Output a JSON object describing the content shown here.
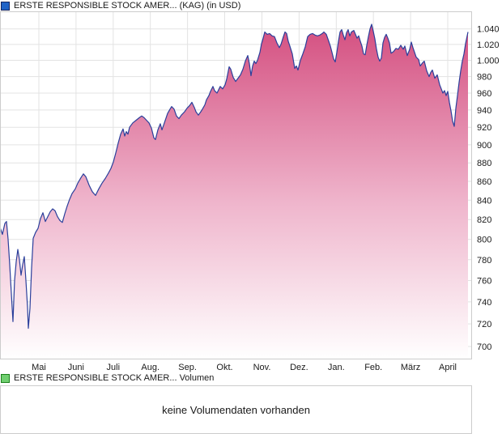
{
  "price_panel": {
    "legend": {
      "label": "ERSTE RESPONSIBLE STOCK AMER... (KAG) (in USD)",
      "swatch_fill": "#2063c6",
      "swatch_border": "#16255f"
    },
    "colors": {
      "line": "#2b3f9b",
      "area_top": "#d2477a",
      "area_mid": "#efb5cc",
      "area_bottom": "#ffffff",
      "grid": "#e3e3e3",
      "border": "#cccccc",
      "text": "#1a1a1a"
    }
  },
  "volume_panel": {
    "legend": {
      "label": "ERSTE RESPONSIBLE STOCK AMER... Volumen",
      "swatch_fill": "#70cf70",
      "swatch_border": "#1b801b"
    },
    "message": "keine Volumendaten vorhanden"
  },
  "chart_data": {
    "type": "area",
    "title": "ERSTE RESPONSIBLE STOCK AMER... (KAG) (in USD)",
    "unit": "USD",
    "grid": true,
    "legend_position": "top-left",
    "y_axis": {
      "side": "right",
      "scale": "log",
      "ylim": [
        700,
        1040
      ],
      "ticks": [
        "1.040",
        "1.020",
        "1.000",
        "980",
        "960",
        "940",
        "920",
        "900",
        "880",
        "860",
        "840",
        "820",
        "800",
        "780",
        "760",
        "740",
        "720",
        "700"
      ],
      "tick_values": [
        1040,
        1020,
        1000,
        980,
        960,
        940,
        920,
        900,
        880,
        860,
        840,
        820,
        800,
        780,
        760,
        740,
        720,
        700
      ]
    },
    "x_axis": {
      "months": [
        "Mai",
        "Juni",
        "Juli",
        "Aug.",
        "Sep.",
        "Okt.",
        "Nov.",
        "Dez.",
        "Jan.",
        "Feb.",
        "März",
        "April"
      ]
    },
    "series": [
      {
        "name": "ERSTE RESPONSIBLE STOCK AMER... (KAG)",
        "points": [
          [
            0,
            812
          ],
          [
            3,
            805
          ],
          [
            6,
            816
          ],
          [
            8,
            818
          ],
          [
            10,
            800
          ],
          [
            12,
            775
          ],
          [
            14,
            748
          ],
          [
            16,
            722
          ],
          [
            18,
            760
          ],
          [
            20,
            778
          ],
          [
            22,
            790
          ],
          [
            24,
            780
          ],
          [
            26,
            765
          ],
          [
            28,
            775
          ],
          [
            30,
            783
          ],
          [
            32,
            760
          ],
          [
            34,
            735
          ],
          [
            35,
            716
          ],
          [
            37,
            734
          ],
          [
            39,
            772
          ],
          [
            41,
            801
          ],
          [
            44,
            807
          ],
          [
            47,
            811
          ],
          [
            50,
            821
          ],
          [
            53,
            827
          ],
          [
            56,
            818
          ],
          [
            59,
            823
          ],
          [
            62,
            828
          ],
          [
            65,
            831
          ],
          [
            68,
            829
          ],
          [
            71,
            823
          ],
          [
            74,
            819
          ],
          [
            77,
            817
          ],
          [
            80,
            826
          ],
          [
            83,
            834
          ],
          [
            86,
            841
          ],
          [
            89,
            847
          ],
          [
            93,
            852
          ],
          [
            96,
            858
          ],
          [
            100,
            864
          ],
          [
            103,
            868
          ],
          [
            106,
            865
          ],
          [
            110,
            856
          ],
          [
            114,
            849
          ],
          [
            118,
            845
          ],
          [
            122,
            852
          ],
          [
            126,
            858
          ],
          [
            130,
            863
          ],
          [
            134,
            869
          ],
          [
            137,
            874
          ],
          [
            140,
            881
          ],
          [
            143,
            891
          ],
          [
            146,
            902
          ],
          [
            149,
            912
          ],
          [
            152,
            918
          ],
          [
            154,
            910
          ],
          [
            156,
            915
          ],
          [
            158,
            912
          ],
          [
            160,
            920
          ],
          [
            164,
            925
          ],
          [
            168,
            928
          ],
          [
            172,
            931
          ],
          [
            175,
            933
          ],
          [
            178,
            931
          ],
          [
            181,
            928
          ],
          [
            184,
            925
          ],
          [
            187,
            919
          ],
          [
            190,
            908
          ],
          [
            192,
            906
          ],
          [
            195,
            917
          ],
          [
            198,
            924
          ],
          [
            200,
            917
          ],
          [
            203,
            925
          ],
          [
            207,
            936
          ],
          [
            210,
            941
          ],
          [
            212,
            944
          ],
          [
            215,
            941
          ],
          [
            218,
            933
          ],
          [
            221,
            930
          ],
          [
            224,
            934
          ],
          [
            228,
            938
          ],
          [
            231,
            942
          ],
          [
            234,
            945
          ],
          [
            237,
            949
          ],
          [
            240,
            943
          ],
          [
            242,
            938
          ],
          [
            245,
            934
          ],
          [
            248,
            938
          ],
          [
            250,
            941
          ],
          [
            253,
            946
          ],
          [
            255,
            952
          ],
          [
            258,
            957
          ],
          [
            260,
            962
          ],
          [
            263,
            968
          ],
          [
            265,
            963
          ],
          [
            268,
            960
          ],
          [
            270,
            964
          ],
          [
            272,
            968
          ],
          [
            275,
            965
          ],
          [
            278,
            970
          ],
          [
            280,
            977
          ],
          [
            283,
            992
          ],
          [
            285,
            989
          ],
          [
            288,
            979
          ],
          [
            291,
            974
          ],
          [
            294,
            978
          ],
          [
            297,
            982
          ],
          [
            300,
            989
          ],
          [
            303,
            999
          ],
          [
            306,
            1006
          ],
          [
            308,
            996
          ],
          [
            310,
            981
          ],
          [
            312,
            993
          ],
          [
            314,
            999
          ],
          [
            316,
            996
          ],
          [
            318,
            1000
          ],
          [
            321,
            1010
          ],
          [
            323,
            1021
          ],
          [
            325,
            1028
          ],
          [
            327,
            1036
          ],
          [
            330,
            1033
          ],
          [
            333,
            1034
          ],
          [
            336,
            1031
          ],
          [
            339,
            1030
          ],
          [
            342,
            1022
          ],
          [
            345,
            1016
          ],
          [
            347,
            1020
          ],
          [
            350,
            1030
          ],
          [
            352,
            1036
          ],
          [
            354,
            1034
          ],
          [
            356,
            1024
          ],
          [
            358,
            1018
          ],
          [
            361,
            1008
          ],
          [
            364,
            990
          ],
          [
            366,
            993
          ],
          [
            368,
            988
          ],
          [
            371,
            1000
          ],
          [
            374,
            1008
          ],
          [
            377,
            1017
          ],
          [
            380,
            1030
          ],
          [
            383,
            1033
          ],
          [
            386,
            1034
          ],
          [
            389,
            1032
          ],
          [
            392,
            1031
          ],
          [
            395,
            1032
          ],
          [
            398,
            1034
          ],
          [
            400,
            1036
          ],
          [
            403,
            1033
          ],
          [
            406,
            1024
          ],
          [
            408,
            1018
          ],
          [
            410,
            1010
          ],
          [
            412,
            1002
          ],
          [
            414,
            998
          ],
          [
            416,
            1010
          ],
          [
            418,
            1024
          ],
          [
            420,
            1036
          ],
          [
            422,
            1039
          ],
          [
            424,
            1032
          ],
          [
            426,
            1026
          ],
          [
            428,
            1035
          ],
          [
            430,
            1039
          ],
          [
            432,
            1031
          ],
          [
            434,
            1036
          ],
          [
            437,
            1038
          ],
          [
            439,
            1033
          ],
          [
            441,
            1028
          ],
          [
            443,
            1031
          ],
          [
            445,
            1024
          ],
          [
            447,
            1018
          ],
          [
            449,
            1008
          ],
          [
            451,
            1007
          ],
          [
            453,
            1019
          ],
          [
            455,
            1030
          ],
          [
            457,
            1040
          ],
          [
            459,
            1046
          ],
          [
            461,
            1037
          ],
          [
            463,
            1027
          ],
          [
            465,
            1014
          ],
          [
            467,
            1004
          ],
          [
            469,
            999
          ],
          [
            471,
            1003
          ],
          [
            473,
            1022
          ],
          [
            475,
            1029
          ],
          [
            477,
            1033
          ],
          [
            479,
            1028
          ],
          [
            481,
            1022
          ],
          [
            483,
            1009
          ],
          [
            486,
            1011
          ],
          [
            489,
            1015
          ],
          [
            492,
            1014
          ],
          [
            495,
            1019
          ],
          [
            498,
            1014
          ],
          [
            500,
            1018
          ],
          [
            503,
            1006
          ],
          [
            506,
            1014
          ],
          [
            508,
            1023
          ],
          [
            510,
            1016
          ],
          [
            512,
            1010
          ],
          [
            514,
            1004
          ],
          [
            517,
            1001
          ],
          [
            519,
            993
          ],
          [
            522,
            997
          ],
          [
            524,
            999
          ],
          [
            527,
            987
          ],
          [
            530,
            980
          ],
          [
            532,
            985
          ],
          [
            534,
            988
          ],
          [
            537,
            978
          ],
          [
            540,
            982
          ],
          [
            543,
            970
          ],
          [
            545,
            965
          ],
          [
            547,
            960
          ],
          [
            549,
            963
          ],
          [
            551,
            957
          ],
          [
            553,
            962
          ],
          [
            555,
            949
          ],
          [
            557,
            939
          ],
          [
            559,
            927
          ],
          [
            561,
            921
          ],
          [
            563,
            942
          ],
          [
            565,
            957
          ],
          [
            567,
            973
          ],
          [
            569,
            987
          ],
          [
            571,
            999
          ],
          [
            573,
            1008
          ],
          [
            575,
            1021
          ],
          [
            577,
            1031
          ],
          [
            578,
            1036
          ]
        ]
      }
    ]
  }
}
